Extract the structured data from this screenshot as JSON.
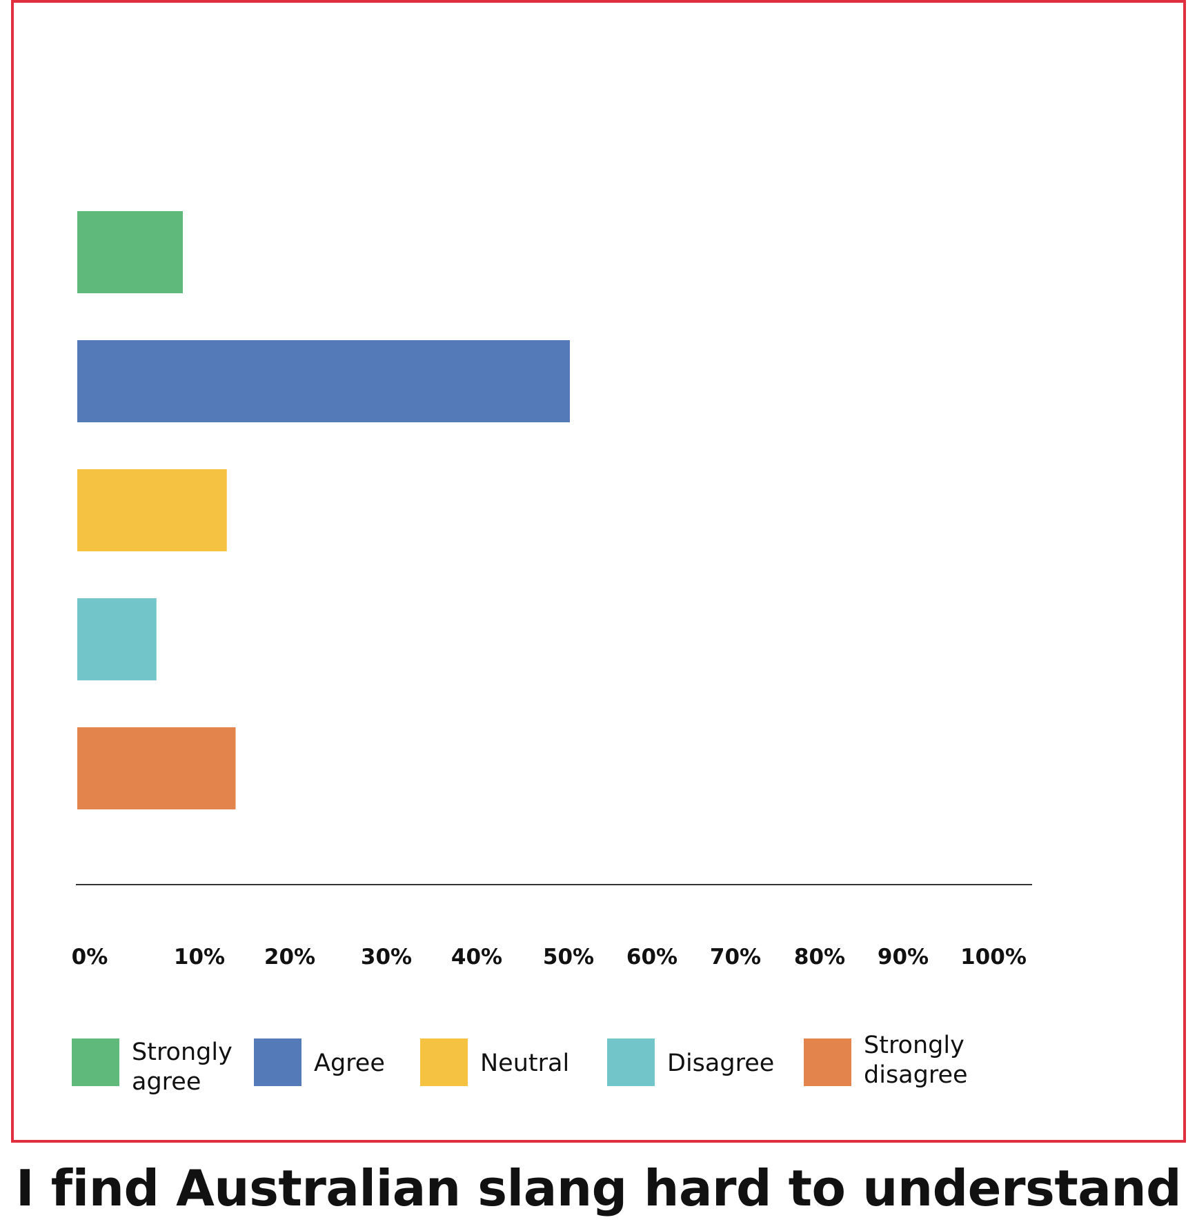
{
  "chart_data": {
    "type": "bar",
    "orientation": "horizontal",
    "title": "I find Australian slang hard to understand",
    "categories": [
      "Strongly agree",
      "Agree",
      "Neutral",
      "Disagree",
      "Strongly disagree"
    ],
    "values": [
      12,
      56,
      17,
      9,
      18
    ],
    "colors": [
      "#5fb97a",
      "#547ab7",
      "#f5c242",
      "#72c5c8",
      "#e4844d"
    ],
    "xlim": [
      0,
      100
    ],
    "x_tick_values": [
      0,
      10,
      20,
      30,
      40,
      50,
      60,
      70,
      80,
      90,
      100
    ],
    "x_tick_labels": [
      "0%",
      "10%",
      "20%",
      "30%",
      "40%",
      "50%",
      "60%",
      "70%",
      "80%",
      "90%",
      "100%"
    ],
    "xlabel": "",
    "ylabel": "",
    "grid": false,
    "legend_position": "bottom",
    "legend": [
      {
        "line1": "Strongly",
        "line2": "agree",
        "color": "#5fb97a"
      },
      {
        "line1": "Agree",
        "line2": "",
        "color": "#547ab7"
      },
      {
        "line1": "Neutral",
        "line2": "",
        "color": "#f5c242"
      },
      {
        "line1": "Disagree",
        "line2": "",
        "color": "#72c5c8"
      },
      {
        "line1": "Strongly",
        "line2": "disagree",
        "color": "#e4844d"
      }
    ],
    "frame_color": "#e0303f"
  }
}
